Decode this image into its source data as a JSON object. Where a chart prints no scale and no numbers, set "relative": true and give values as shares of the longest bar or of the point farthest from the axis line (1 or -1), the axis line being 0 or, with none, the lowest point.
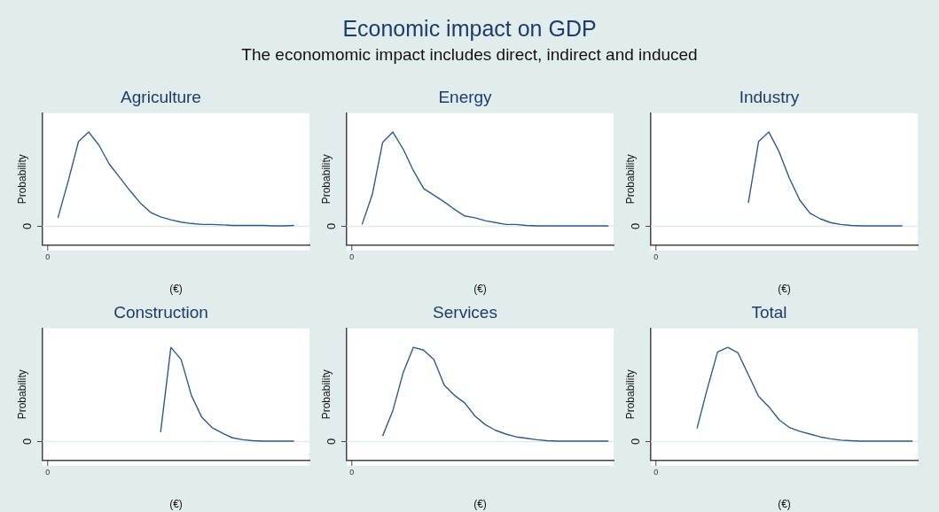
{
  "chart_data": [
    {
      "type": "other",
      "title": "Economic impact on GDP",
      "subtitle": "The economomic impact includes direct, indirect and induced"
    },
    {
      "type": "line",
      "title": "Agriculture",
      "xlabel": "(€)",
      "ylabel": "Probability",
      "relative": true,
      "legend": false,
      "grid": false,
      "marker": "none",
      "annotations": [
        "0"
      ],
      "categories": [
        null,
        null,
        null,
        null,
        null,
        null,
        null,
        null,
        null,
        null,
        null,
        null,
        null,
        null,
        null,
        null,
        null,
        null,
        null,
        null,
        null,
        null,
        null,
        null,
        null,
        null
      ],
      "series": [
        {
          "color": "#2f5b8a",
          "values": [
            null,
            0.09,
            0.48,
            0.9,
            1,
            0.86,
            0.66,
            0.52,
            0.38,
            0.25,
            0.15,
            0.1,
            0.07,
            0.045,
            0.03,
            0.02,
            0.02,
            0.015,
            0.01,
            0.01,
            0.01,
            0.01,
            0.005,
            0.005,
            0.01,
            null
          ]
        }
      ],
      "ref_lines": [
        {
          "axis": "y",
          "value": 0,
          "label": "0",
          "color": "#e0ecec"
        }
      ]
    },
    {
      "type": "line",
      "title": "Energy",
      "xlabel": "(€)",
      "ylabel": "Probability",
      "relative": true,
      "legend": false,
      "grid": false,
      "marker": "none",
      "annotations": [
        "0"
      ],
      "categories": [
        null,
        null,
        null,
        null,
        null,
        null,
        null,
        null,
        null,
        null,
        null,
        null,
        null,
        null,
        null,
        null,
        null,
        null,
        null,
        null,
        null,
        null,
        null,
        null,
        null,
        null
      ],
      "series": [
        {
          "color": "#2f5b8a",
          "values": [
            null,
            0.02,
            0.34,
            0.89,
            1,
            0.82,
            0.59,
            0.4,
            0.33,
            0.26,
            0.18,
            0.11,
            0.09,
            0.06,
            0.04,
            0.02,
            0.02,
            0.01,
            0.005,
            0.005,
            0.005,
            0.005,
            0.005,
            0.005,
            0.005,
            0.005
          ]
        }
      ],
      "ref_lines": [
        {
          "axis": "y",
          "value": 0,
          "label": "0",
          "color": "#e0ecec"
        }
      ]
    },
    {
      "type": "line",
      "title": "Industry",
      "xlabel": "(€)",
      "ylabel": "Probability",
      "relative": true,
      "legend": false,
      "grid": false,
      "marker": "none",
      "annotations": [
        "0"
      ],
      "categories": [
        null,
        null,
        null,
        null,
        null,
        null,
        null,
        null,
        null,
        null,
        null,
        null,
        null,
        null,
        null,
        null,
        null,
        null,
        null,
        null,
        null,
        null,
        null,
        null,
        null,
        null
      ],
      "series": [
        {
          "color": "#2f5b8a",
          "values": [
            null,
            null,
            null,
            null,
            null,
            null,
            null,
            null,
            null,
            0.25,
            0.9,
            1,
            0.79,
            0.51,
            0.28,
            0.14,
            0.08,
            0.04,
            0.02,
            0.01,
            0.005,
            0.005,
            0.005,
            0.005,
            0.005,
            null
          ]
        }
      ],
      "ref_lines": [
        {
          "axis": "y",
          "value": 0,
          "label": "0",
          "color": "#e0ecec"
        }
      ]
    },
    {
      "type": "line",
      "title": "Construction",
      "xlabel": "(€)",
      "ylabel": "Probability",
      "relative": true,
      "legend": false,
      "grid": false,
      "marker": "none",
      "annotations": [
        "0"
      ],
      "categories": [
        null,
        null,
        null,
        null,
        null,
        null,
        null,
        null,
        null,
        null,
        null,
        null,
        null,
        null,
        null,
        null,
        null,
        null,
        null,
        null,
        null,
        null,
        null,
        null,
        null,
        null
      ],
      "series": [
        {
          "color": "#2f5b8a",
          "values": [
            null,
            null,
            null,
            null,
            null,
            null,
            null,
            null,
            null,
            null,
            null,
            0.1,
            1,
            0.87,
            0.49,
            0.26,
            0.15,
            0.09,
            0.04,
            0.02,
            0.01,
            0.005,
            0.005,
            0.005,
            0.005,
            null
          ]
        }
      ],
      "ref_lines": [
        {
          "axis": "y",
          "value": 0,
          "label": "0",
          "color": "#e0ecec"
        }
      ]
    },
    {
      "type": "line",
      "title": "Services",
      "xlabel": "(€)",
      "ylabel": "Probability",
      "relative": true,
      "legend": false,
      "grid": false,
      "marker": "none",
      "annotations": [
        "0"
      ],
      "categories": [
        null,
        null,
        null,
        null,
        null,
        null,
        null,
        null,
        null,
        null,
        null,
        null,
        null,
        null,
        null,
        null,
        null,
        null,
        null,
        null,
        null,
        null,
        null,
        null,
        null,
        null
      ],
      "series": [
        {
          "color": "#2f5b8a",
          "values": [
            null,
            null,
            null,
            0.06,
            0.33,
            0.73,
            1,
            0.97,
            0.87,
            0.6,
            0.49,
            0.41,
            0.27,
            0.18,
            0.12,
            0.08,
            0.05,
            0.035,
            0.02,
            0.01,
            0.005,
            0.005,
            0.005,
            0.005,
            0.005,
            0.005
          ]
        }
      ],
      "ref_lines": [
        {
          "axis": "y",
          "value": 0,
          "label": "0",
          "color": "#e0ecec"
        }
      ]
    },
    {
      "type": "line",
      "title": "Total",
      "xlabel": "(€)",
      "ylabel": "Probability",
      "relative": true,
      "legend": false,
      "grid": false,
      "marker": "none",
      "annotations": [
        "0"
      ],
      "categories": [
        null,
        null,
        null,
        null,
        null,
        null,
        null,
        null,
        null,
        null,
        null,
        null,
        null,
        null,
        null,
        null,
        null,
        null,
        null,
        null,
        null,
        null,
        null,
        null,
        null,
        null
      ],
      "series": [
        {
          "color": "#2f5b8a",
          "values": [
            null,
            null,
            null,
            null,
            0.14,
            0.56,
            0.95,
            1,
            0.94,
            0.71,
            0.48,
            0.37,
            0.23,
            0.15,
            0.11,
            0.08,
            0.05,
            0.03,
            0.015,
            0.01,
            0.005,
            0.005,
            0.005,
            0.005,
            0.005,
            0.005
          ]
        }
      ],
      "ref_lines": [
        {
          "axis": "y",
          "value": 0,
          "label": "0",
          "color": "#e0ecec"
        }
      ]
    }
  ]
}
